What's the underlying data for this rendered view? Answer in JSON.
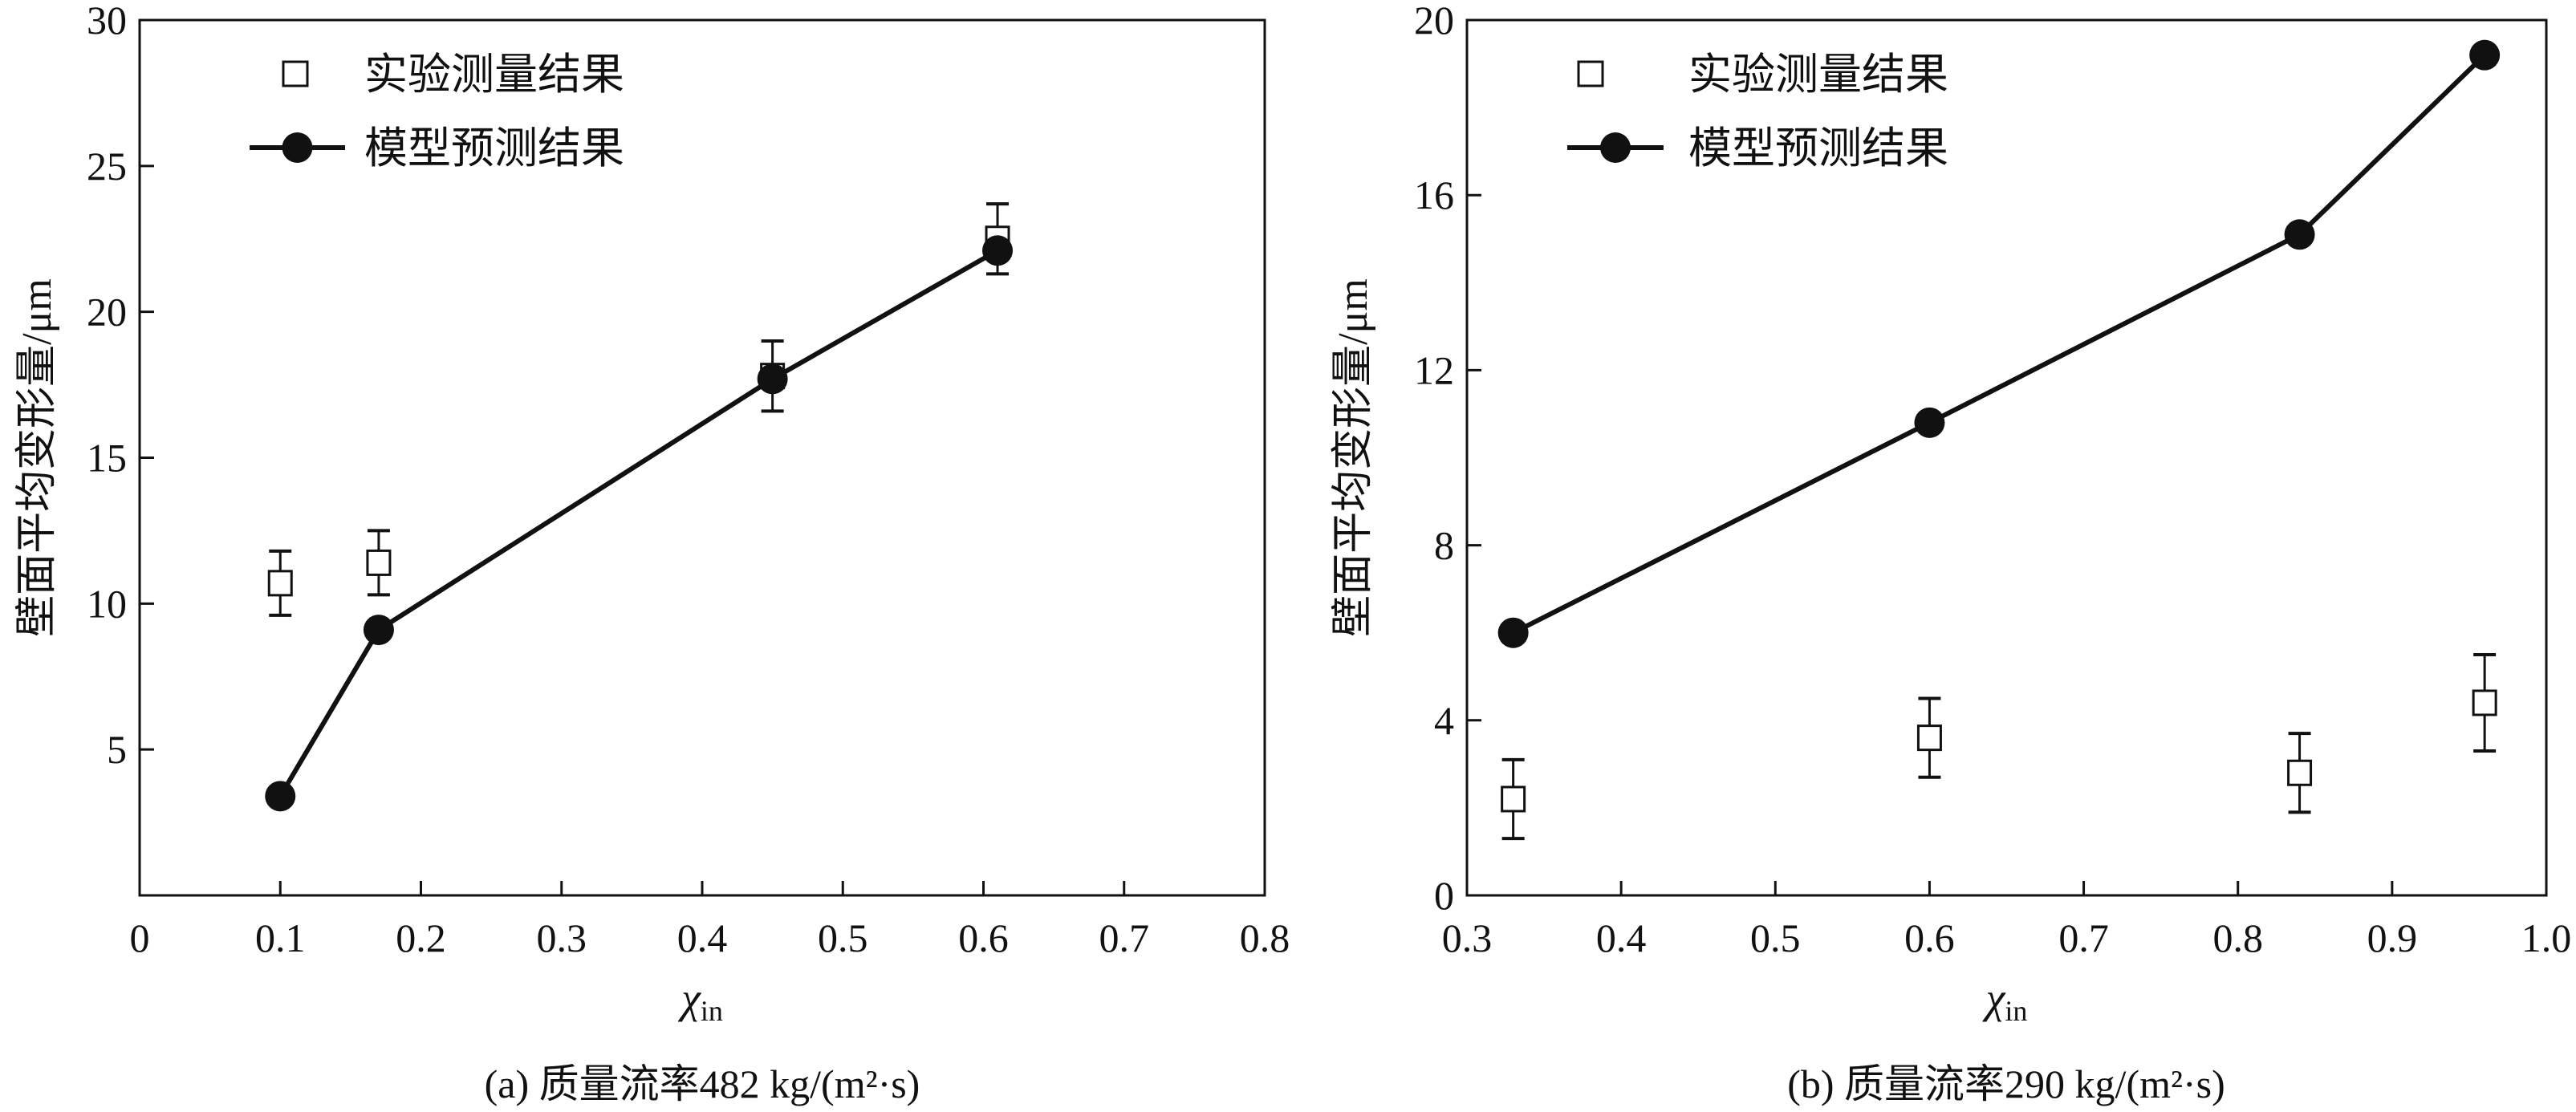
{
  "chart_data": [
    {
      "type": "scatter",
      "caption": "(a) 质量流率482 kg/(m²·s)",
      "xlabel": "χ",
      "xlabel_sub": "in",
      "ylabel": "壁面平均变形量/μm",
      "xlim": [
        0,
        0.8
      ],
      "ylim": [
        0,
        30
      ],
      "xticks": [
        "0",
        "0.1",
        "0.2",
        "0.3",
        "0.4",
        "0.5",
        "0.6",
        "0.7",
        "0.8"
      ],
      "yticks": [
        "5",
        "10",
        "15",
        "20",
        "25",
        "30"
      ],
      "grid": false,
      "legend_position": "top-left",
      "series": [
        {
          "name": "实验测量结果",
          "marker": "open-square",
          "line": false,
          "x": [
            0.1,
            0.17,
            0.45,
            0.61
          ],
          "y": [
            10.7,
            11.4,
            17.8,
            22.5
          ],
          "yerr": [
            1.1,
            1.1,
            1.2,
            1.2
          ]
        },
        {
          "name": "模型预测结果",
          "marker": "filled-circle",
          "line": true,
          "x": [
            0.1,
            0.17,
            0.45,
            0.61
          ],
          "y": [
            3.4,
            9.1,
            17.7,
            22.1
          ]
        }
      ]
    },
    {
      "type": "scatter",
      "caption": "(b) 质量流率290 kg/(m²·s)",
      "xlabel": "χ",
      "xlabel_sub": "in",
      "ylabel": "壁面平均变形量/μm",
      "xlim": [
        0.3,
        1.0
      ],
      "ylim": [
        0,
        20
      ],
      "xticks": [
        "0.3",
        "0.4",
        "0.5",
        "0.6",
        "0.7",
        "0.8",
        "0.9",
        "1.0"
      ],
      "yticks": [
        "0",
        "4",
        "8",
        "12",
        "16",
        "20"
      ],
      "grid": false,
      "legend_position": "top-left",
      "series": [
        {
          "name": "实验测量结果",
          "marker": "open-square",
          "line": false,
          "x": [
            0.33,
            0.6,
            0.84,
            0.96
          ],
          "y": [
            2.2,
            3.6,
            2.8,
            4.4
          ],
          "yerr": [
            0.9,
            0.9,
            0.9,
            1.1
          ]
        },
        {
          "name": "模型预测结果",
          "marker": "filled-circle",
          "line": true,
          "x": [
            0.33,
            0.6,
            0.84,
            0.96
          ],
          "y": [
            6.0,
            10.8,
            15.1,
            19.2
          ]
        }
      ]
    }
  ]
}
